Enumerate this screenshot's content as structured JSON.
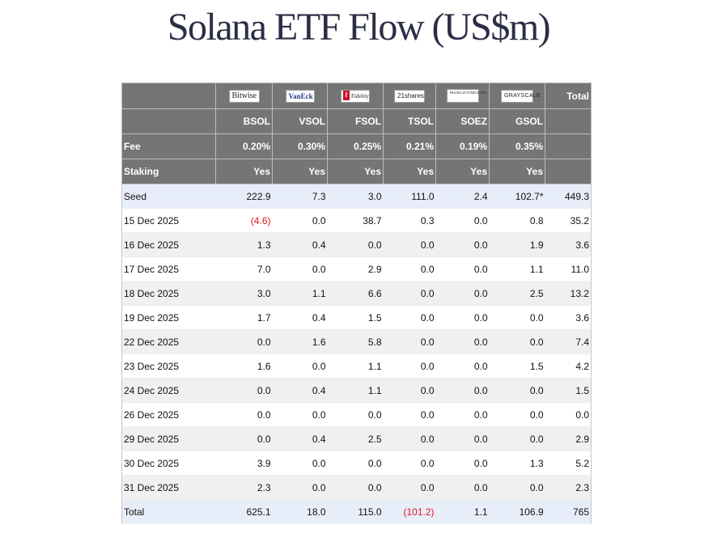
{
  "title": "Solana ETF Flow (US$m)",
  "issuers": {
    "bitwise": "Bitwise",
    "vaneck": "VanEck",
    "fidelity": "Fidelity",
    "shares21": "21shares",
    "franklin": "FRANKLIN TEMPLETON",
    "grayscale": "GRAYSCALE"
  },
  "header": {
    "total_label": "Total",
    "tickers": [
      "BSOL",
      "VSOL",
      "FSOL",
      "TSOL",
      "SOEZ",
      "GSOL"
    ],
    "fee_label": "Fee",
    "fees": [
      "0.20%",
      "0.30%",
      "0.25%",
      "0.21%",
      "0.19%",
      "0.35%"
    ],
    "staking_label": "Staking",
    "staking": [
      "Yes",
      "Yes",
      "Yes",
      "Yes",
      "Yes",
      "Yes"
    ]
  },
  "rows": [
    {
      "label": "Seed",
      "values": [
        "222.9",
        "7.3",
        "3.0",
        "111.0",
        "2.4",
        "102.7*",
        "449.3"
      ]
    },
    {
      "label": "15 Dec 2025",
      "values": [
        "(4.6)",
        "0.0",
        "38.7",
        "0.3",
        "0.0",
        "0.8",
        "35.2"
      ]
    },
    {
      "label": "16 Dec 2025",
      "values": [
        "1.3",
        "0.4",
        "0.0",
        "0.0",
        "0.0",
        "1.9",
        "3.6"
      ]
    },
    {
      "label": "17 Dec 2025",
      "values": [
        "7.0",
        "0.0",
        "2.9",
        "0.0",
        "0.0",
        "1.1",
        "11.0"
      ]
    },
    {
      "label": "18 Dec 2025",
      "values": [
        "3.0",
        "1.1",
        "6.6",
        "0.0",
        "0.0",
        "2.5",
        "13.2"
      ]
    },
    {
      "label": "19 Dec 2025",
      "values": [
        "1.7",
        "0.4",
        "1.5",
        "0.0",
        "0.0",
        "0.0",
        "3.6"
      ]
    },
    {
      "label": "22 Dec 2025",
      "values": [
        "0.0",
        "1.6",
        "5.8",
        "0.0",
        "0.0",
        "0.0",
        "7.4"
      ]
    },
    {
      "label": "23 Dec 2025",
      "values": [
        "1.6",
        "0.0",
        "1.1",
        "0.0",
        "0.0",
        "1.5",
        "4.2"
      ]
    },
    {
      "label": "24 Dec 2025",
      "values": [
        "0.0",
        "0.4",
        "1.1",
        "0.0",
        "0.0",
        "0.0",
        "1.5"
      ]
    },
    {
      "label": "26 Dec 2025",
      "values": [
        "0.0",
        "0.0",
        "0.0",
        "0.0",
        "0.0",
        "0.0",
        "0.0"
      ]
    },
    {
      "label": "29 Dec 2025",
      "values": [
        "0.0",
        "0.4",
        "2.5",
        "0.0",
        "0.0",
        "0.0",
        "2.9"
      ]
    },
    {
      "label": "30 Dec 2025",
      "values": [
        "3.9",
        "0.0",
        "0.0",
        "0.0",
        "0.0",
        "1.3",
        "5.2"
      ]
    },
    {
      "label": "31 Dec 2025",
      "values": [
        "2.3",
        "0.0",
        "0.0",
        "0.0",
        "0.0",
        "0.0",
        "2.3"
      ]
    },
    {
      "label": "Total",
      "values": [
        "625.1",
        "18.0",
        "115.0",
        "(101.2)",
        "1.1",
        "106.9",
        "765"
      ]
    }
  ],
  "colors": {
    "header_bg": "#757575",
    "negative": "#e0141e",
    "highlight_row": "#e8eef9",
    "title": "#2b2e45"
  }
}
